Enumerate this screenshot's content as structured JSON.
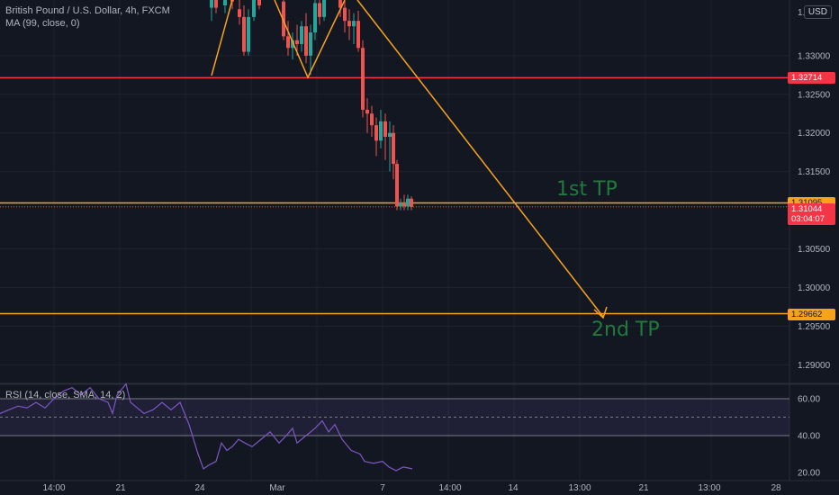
{
  "header": {
    "title": "British Pound / U.S. Dollar, 4h, FXCM",
    "indicator": "MA (99, close, 0)",
    "currency": "USD"
  },
  "rsi": {
    "title": "RSI (14, close, SMA, 14, 2)",
    "ticks": [
      "60.00",
      "40.00",
      "20.00"
    ],
    "upper": 60,
    "lower": 40,
    "mid": 50,
    "values": [
      [
        0,
        52
      ],
      [
        10,
        54
      ],
      [
        20,
        56
      ],
      [
        30,
        55
      ],
      [
        40,
        58
      ],
      [
        50,
        55
      ],
      [
        60,
        60
      ],
      [
        70,
        64
      ],
      [
        80,
        66
      ],
      [
        90,
        62
      ],
      [
        100,
        66
      ],
      [
        110,
        60
      ],
      [
        120,
        58
      ],
      [
        125,
        52
      ],
      [
        130,
        62
      ],
      [
        140,
        68
      ],
      [
        145,
        58
      ],
      [
        150,
        56
      ],
      [
        160,
        52
      ],
      [
        170,
        54
      ],
      [
        180,
        58
      ],
      [
        190,
        54
      ],
      [
        200,
        58
      ],
      [
        205,
        52
      ],
      [
        210,
        46
      ],
      [
        215,
        38
      ],
      [
        220,
        30
      ],
      [
        226,
        22
      ],
      [
        232,
        24
      ],
      [
        240,
        26
      ],
      [
        246,
        36
      ],
      [
        252,
        32
      ],
      [
        258,
        34
      ],
      [
        265,
        38
      ],
      [
        272,
        36
      ],
      [
        280,
        34
      ],
      [
        290,
        38
      ],
      [
        300,
        42
      ],
      [
        310,
        36
      ],
      [
        318,
        40
      ],
      [
        325,
        44
      ],
      [
        330,
        36
      ],
      [
        340,
        40
      ],
      [
        350,
        44
      ],
      [
        358,
        48
      ],
      [
        365,
        42
      ],
      [
        372,
        46
      ],
      [
        380,
        38
      ],
      [
        390,
        32
      ],
      [
        400,
        30
      ],
      [
        405,
        26
      ],
      [
        415,
        25
      ],
      [
        425,
        26
      ],
      [
        432,
        23
      ],
      [
        440,
        21
      ],
      [
        448,
        23
      ],
      [
        458,
        22
      ]
    ]
  },
  "overlay_labels": {
    "tp1": "1st TP",
    "tp2": "2nd TP"
  },
  "price_labels": [
    {
      "text": "1.32714",
      "color": "#f23645",
      "price": 1.32714
    },
    {
      "text": "1.31095",
      "color": "#f7a21b",
      "price": 1.31095
    },
    {
      "text": "1.31044",
      "sub": "03:04:07",
      "color": "#f23645",
      "price": 1.31044
    },
    {
      "text": "1.29662",
      "color": "#f7a21b",
      "price": 1.29662
    }
  ],
  "chart_data": {
    "type": "candlestick",
    "title": "British Pound / U.S. Dollar, 4h, FXCM",
    "y_ticks": [
      "1.33000",
      "1.32500",
      "1.32000",
      "1.31500",
      "1.30500",
      "1.30000",
      "1.29500",
      "1.29000"
    ],
    "y_tick_values": [
      1.33,
      1.325,
      1.32,
      1.315,
      1.305,
      1.3,
      1.295,
      1.29
    ],
    "partial_top_tick": "1.3",
    "ylim": [
      1.2876,
      1.3372
    ],
    "x_ticks": [
      "14:00",
      "21",
      "24",
      "Mar",
      "7",
      "14:00",
      "14",
      "13:00",
      "21",
      "13:00",
      "28"
    ],
    "x_tick_index": [
      1,
      7,
      11,
      15,
      21,
      25,
      28,
      32,
      35,
      39,
      42
    ],
    "horizontal_levels": [
      {
        "price": 1.32714,
        "color": "#f23645"
      },
      {
        "price": 1.31095,
        "color": "#f7a21b"
      },
      {
        "price": 1.29662,
        "color": "#f7a21b"
      }
    ],
    "current_price": 1.31044,
    "candles": [
      {
        "x": 235,
        "o": 1.3362,
        "h": 1.3385,
        "l": 1.3345,
        "c": 1.3378
      },
      {
        "x": 240,
        "o": 1.3378,
        "h": 1.3392,
        "l": 1.3355,
        "c": 1.3362
      },
      {
        "x": 250,
        "o": 1.3365,
        "h": 1.3385,
        "l": 1.3355,
        "c": 1.338
      },
      {
        "x": 258,
        "o": 1.338,
        "h": 1.339,
        "l": 1.336,
        "c": 1.337
      },
      {
        "x": 266,
        "o": 1.336,
        "h": 1.339,
        "l": 1.334,
        "c": 1.335
      },
      {
        "x": 271,
        "o": 1.335,
        "h": 1.3365,
        "l": 1.33,
        "c": 1.3305
      },
      {
        "x": 276,
        "o": 1.3305,
        "h": 1.336,
        "l": 1.33,
        "c": 1.335
      },
      {
        "x": 282,
        "o": 1.335,
        "h": 1.3385,
        "l": 1.3345,
        "c": 1.3378
      },
      {
        "x": 288,
        "o": 1.3378,
        "h": 1.3392,
        "l": 1.336,
        "c": 1.3365
      },
      {
        "x": 315,
        "o": 1.337,
        "h": 1.338,
        "l": 1.332,
        "c": 1.3325
      },
      {
        "x": 320,
        "o": 1.3325,
        "h": 1.3345,
        "l": 1.33,
        "c": 1.331
      },
      {
        "x": 325,
        "o": 1.331,
        "h": 1.333,
        "l": 1.3295,
        "c": 1.332
      },
      {
        "x": 330,
        "o": 1.332,
        "h": 1.334,
        "l": 1.33,
        "c": 1.3315
      },
      {
        "x": 335,
        "o": 1.3315,
        "h": 1.3345,
        "l": 1.3305,
        "c": 1.3338
      },
      {
        "x": 340,
        "o": 1.3338,
        "h": 1.3355,
        "l": 1.329,
        "c": 1.33
      },
      {
        "x": 345,
        "o": 1.33,
        "h": 1.334,
        "l": 1.3275,
        "c": 1.333
      },
      {
        "x": 350,
        "o": 1.333,
        "h": 1.3375,
        "l": 1.332,
        "c": 1.3368
      },
      {
        "x": 355,
        "o": 1.3368,
        "h": 1.3385,
        "l": 1.334,
        "c": 1.335
      },
      {
        "x": 360,
        "o": 1.335,
        "h": 1.3388,
        "l": 1.3345,
        "c": 1.338
      },
      {
        "x": 378,
        "o": 1.338,
        "h": 1.339,
        "l": 1.335,
        "c": 1.3362
      },
      {
        "x": 383,
        "o": 1.3362,
        "h": 1.3375,
        "l": 1.333,
        "c": 1.3345
      },
      {
        "x": 388,
        "o": 1.3345,
        "h": 1.336,
        "l": 1.332,
        "c": 1.3338
      },
      {
        "x": 393,
        "o": 1.3338,
        "h": 1.3355,
        "l": 1.3315,
        "c": 1.3345
      },
      {
        "x": 398,
        "o": 1.3345,
        "h": 1.3358,
        "l": 1.3305,
        "c": 1.331
      },
      {
        "x": 403,
        "o": 1.331,
        "h": 1.332,
        "l": 1.322,
        "c": 1.323
      },
      {
        "x": 408,
        "o": 1.323,
        "h": 1.3245,
        "l": 1.32,
        "c": 1.3225
      },
      {
        "x": 413,
        "o": 1.3225,
        "h": 1.3235,
        "l": 1.3195,
        "c": 1.321
      },
      {
        "x": 418,
        "o": 1.321,
        "h": 1.322,
        "l": 1.317,
        "c": 1.319
      },
      {
        "x": 423,
        "o": 1.319,
        "h": 1.323,
        "l": 1.318,
        "c": 1.3215
      },
      {
        "x": 428,
        "o": 1.3215,
        "h": 1.3225,
        "l": 1.3165,
        "c": 1.3195
      },
      {
        "x": 433,
        "o": 1.3195,
        "h": 1.3215,
        "l": 1.315,
        "c": 1.32
      },
      {
        "x": 437,
        "o": 1.32,
        "h": 1.321,
        "l": 1.314,
        "c": 1.316
      },
      {
        "x": 441,
        "o": 1.316,
        "h": 1.3165,
        "l": 1.31,
        "c": 1.3105
      },
      {
        "x": 445,
        "o": 1.3105,
        "h": 1.3115,
        "l": 1.31,
        "c": 1.311
      },
      {
        "x": 449,
        "o": 1.311,
        "h": 1.312,
        "l": 1.31,
        "c": 1.3105
      },
      {
        "x": 453,
        "o": 1.3105,
        "h": 1.312,
        "l": 1.31,
        "c": 1.3115
      },
      {
        "x": 457,
        "o": 1.3115,
        "h": 1.3118,
        "l": 1.31,
        "c": 1.31044
      }
    ]
  },
  "colors": {
    "up": "#26a69a",
    "down": "#ef5350",
    "drawing": "#f7a21b",
    "rsi_line": "#7e57c2",
    "background": "#131722"
  }
}
